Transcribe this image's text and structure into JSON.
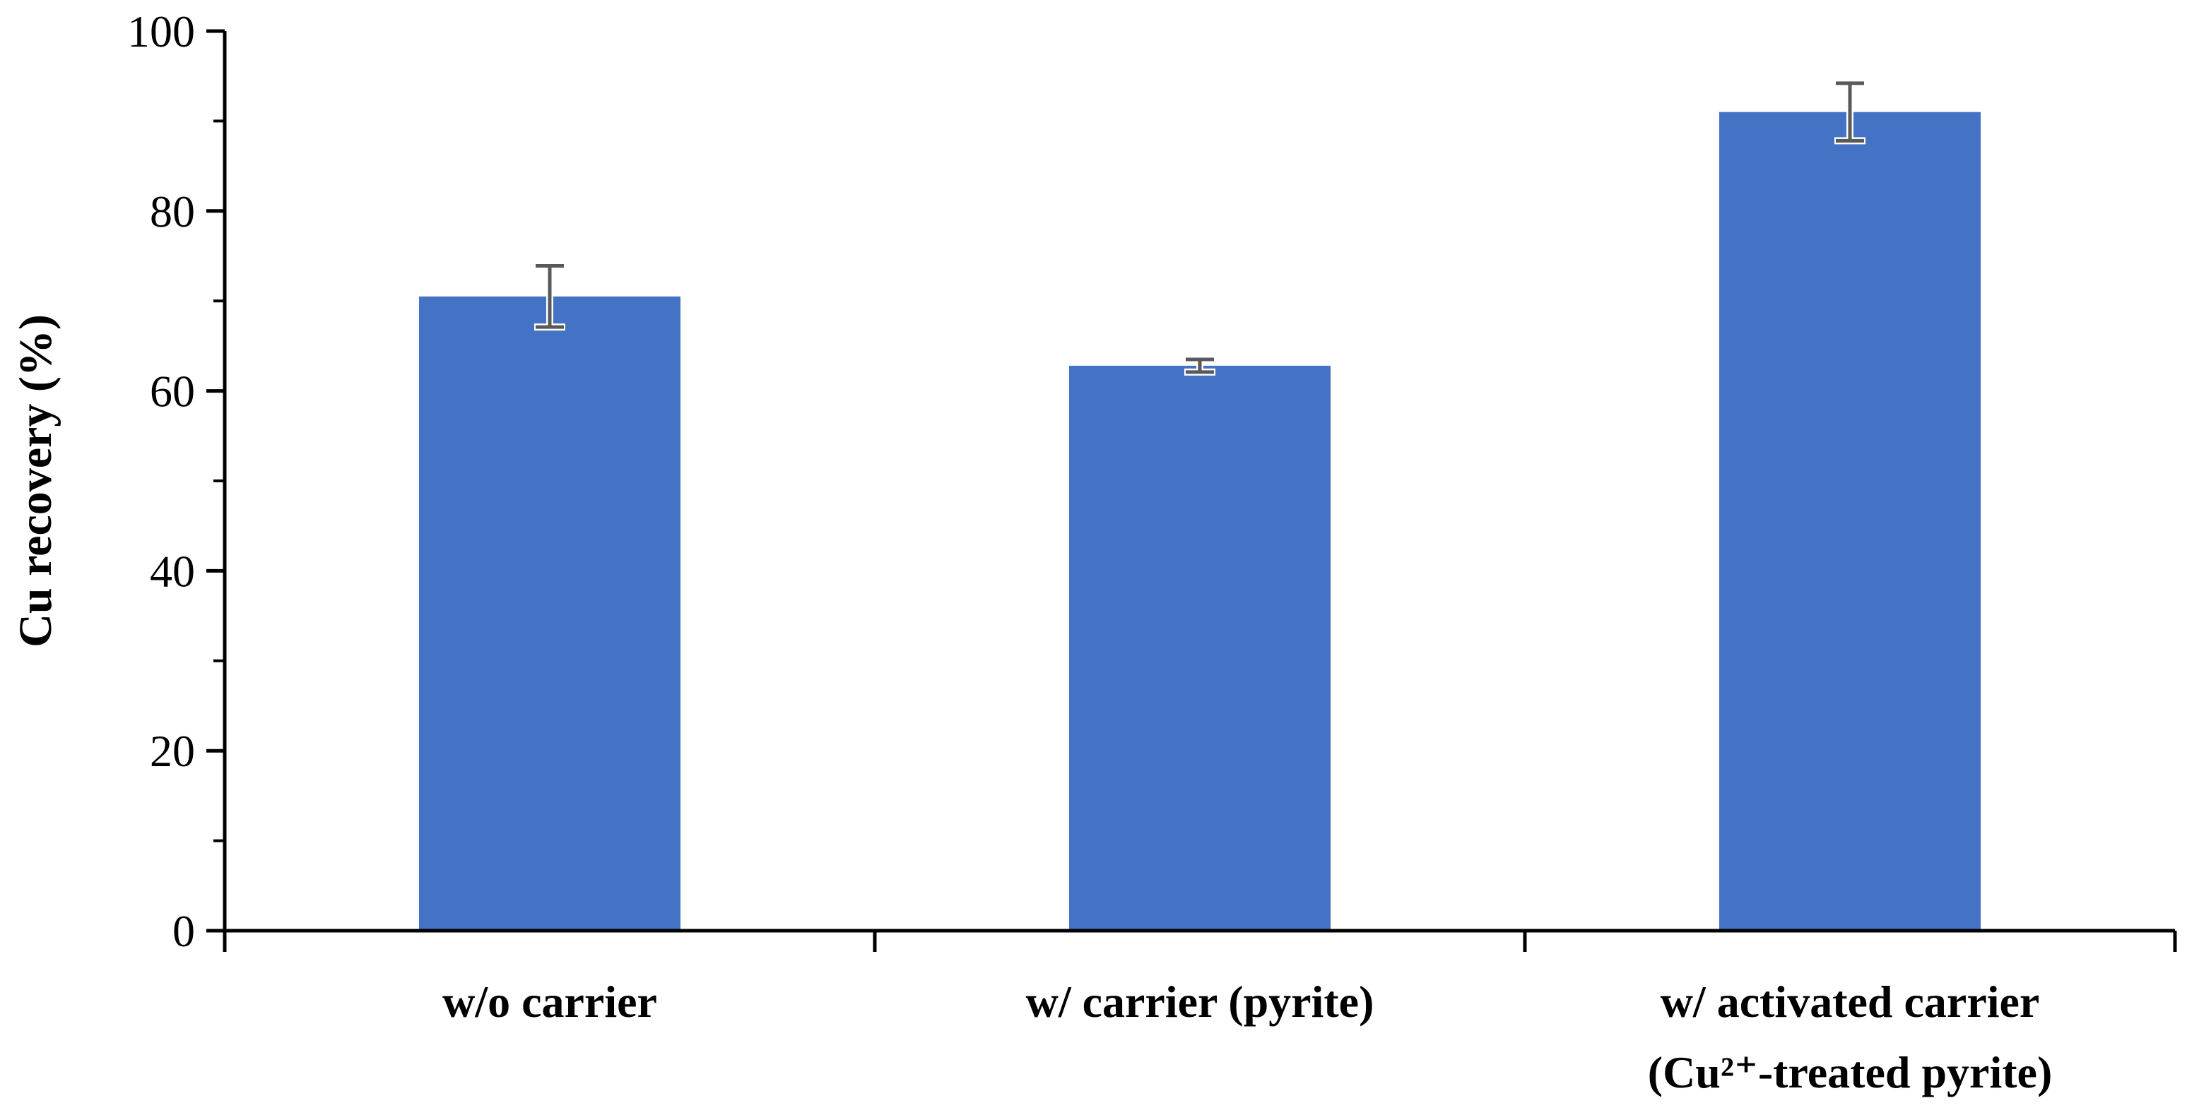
{
  "chart_data": {
    "type": "bar",
    "title": "",
    "xlabel": "",
    "ylabel": "Cu recovery (%)",
    "ylim": [
      0,
      100
    ],
    "yticks": [
      "0",
      "20",
      "40",
      "60",
      "80",
      "100"
    ],
    "grid": false,
    "legend": "none",
    "bar_color": "#4472C4",
    "error_bar_color": "#595959",
    "categories": [
      {
        "line1": "w/o carrier",
        "line2": ""
      },
      {
        "line1": "w/ carrier (pyrite)",
        "line2": ""
      },
      {
        "line1": "w/ activated carrier",
        "line2": "(Cu²⁺-treated pyrite)"
      }
    ],
    "values": [
      70.5,
      62.8,
      91.0
    ],
    "errors": [
      3.4,
      0.7,
      3.2
    ]
  }
}
